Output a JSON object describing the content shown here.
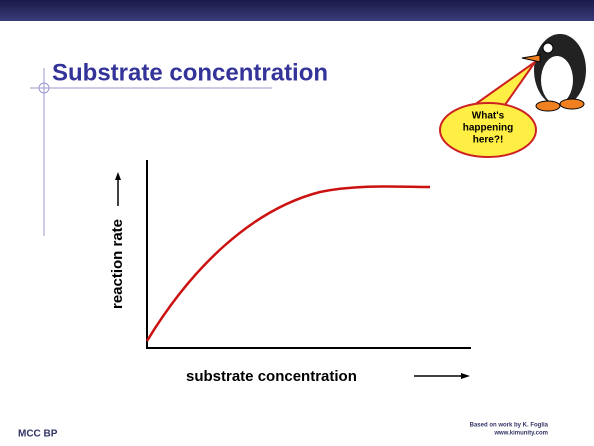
{
  "slide": {
    "title": "Substrate concentration",
    "bubble": [
      "What's",
      "happening",
      "here?!"
    ],
    "y_axis_label": "reaction rate",
    "x_axis_label": "substrate concentration",
    "footer_left": "MCC BP",
    "credit": [
      "Based on work by K. Foglia",
      "www.kimunity.com"
    ]
  }
}
